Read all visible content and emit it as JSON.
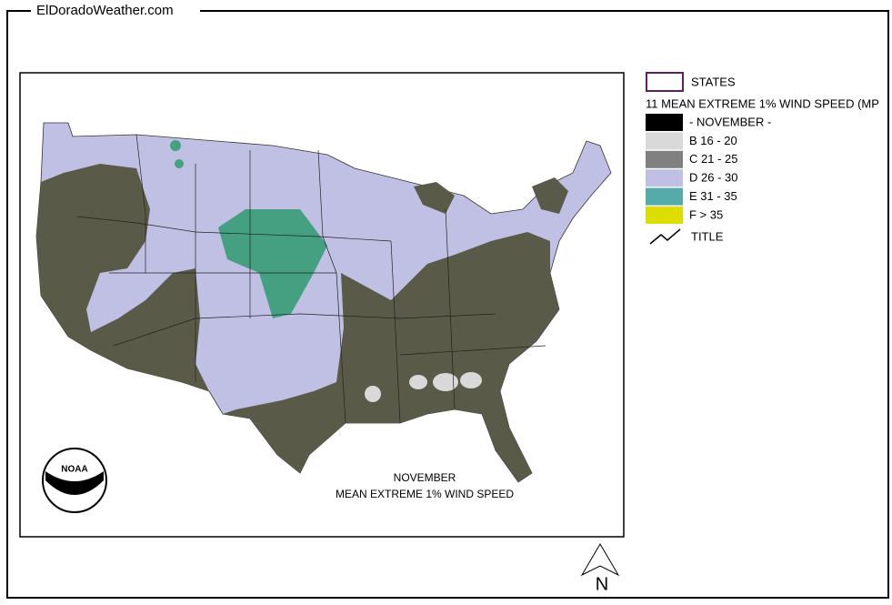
{
  "header": {
    "title": "ElDoradoWeather.com"
  },
  "legend": {
    "states": "STATES",
    "layer": "11 MEAN EXTREME 1% WIND SPEED (MP",
    "items": [
      {
        "label": "- NOVEMBER -",
        "color": "#000000"
      },
      {
        "label": "B 16 - 20",
        "color": "#d9d9d9"
      },
      {
        "label": "C 21 - 25",
        "color": "#808080"
      },
      {
        "label": "D 26 - 30",
        "color": "#c0c0e4"
      },
      {
        "label": "E 31 - 35",
        "color": "#55aaaa"
      },
      {
        "label": "F > 35",
        "color": "#dddd00"
      }
    ],
    "title": "TITLE"
  },
  "map": {
    "caption": [
      "NOVEMBER",
      "MEAN EXTREME 1% WIND SPEED"
    ],
    "logo": "NOAA",
    "north": "N"
  }
}
